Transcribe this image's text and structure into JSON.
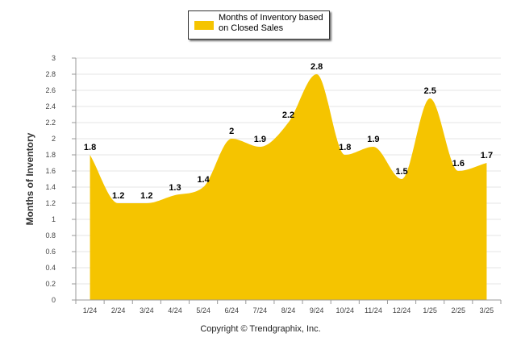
{
  "legend": {
    "label": "Months of Inventory based on Closed Sales"
  },
  "footer": {
    "copyright": "Copyright © Trendgraphix, Inc."
  },
  "colors": {
    "area": "#f5c400",
    "grid": "#e4e4e4",
    "axis": "#999999"
  },
  "chart_data": {
    "type": "area",
    "categories": [
      "1/24",
      "2/24",
      "3/24",
      "4/24",
      "5/24",
      "6/24",
      "7/24",
      "8/24",
      "9/24",
      "10/24",
      "11/24",
      "12/24",
      "1/25",
      "2/25",
      "3/25"
    ],
    "series": [
      {
        "name": "Months of Inventory based on Closed Sales",
        "values": [
          1.8,
          1.2,
          1.2,
          1.3,
          1.4,
          2,
          1.9,
          2.2,
          2.8,
          1.8,
          1.9,
          1.5,
          2.5,
          1.6,
          1.7
        ]
      }
    ],
    "data_labels": [
      "1.8",
      "1.2",
      "1.2",
      "1.3",
      "1.4",
      "2",
      "1.9",
      "2.2",
      "2.8",
      "1.8",
      "1.9",
      "1.5",
      "2.5",
      "1.6",
      "1.7"
    ],
    "ylabel": "Months of Inventory",
    "xlabel": "",
    "ylim": [
      0,
      3
    ],
    "yticks": [
      "0",
      "0.2",
      "0.4",
      "0.6",
      "0.8",
      "1",
      "1.2",
      "1.4",
      "1.6",
      "1.8",
      "2",
      "2.2",
      "2.4",
      "2.6",
      "2.8",
      "3"
    ],
    "grid": true,
    "legend_position": "top-center"
  }
}
